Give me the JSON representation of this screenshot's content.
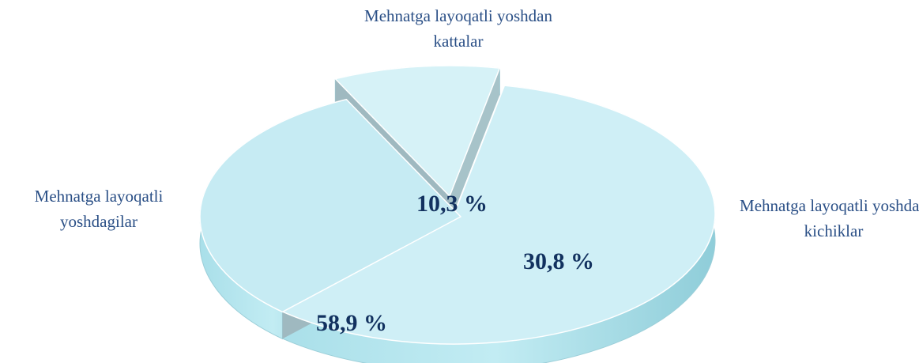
{
  "chart_data": {
    "type": "pie",
    "categories": [
      "Mehnatga layoqatli yoshdagilar",
      "Mehnatga layoqatli yoshdan kichiklar",
      "Mehnatga layoqatli yoshdan kattalar"
    ],
    "values": [
      58.9,
      30.8,
      10.3
    ],
    "value_labels": [
      "58,9 %",
      "30,8 %",
      "10,3 %"
    ],
    "colors": [
      "#cfeff6",
      "#c6ebf3",
      "#d6f2f7"
    ]
  }
}
